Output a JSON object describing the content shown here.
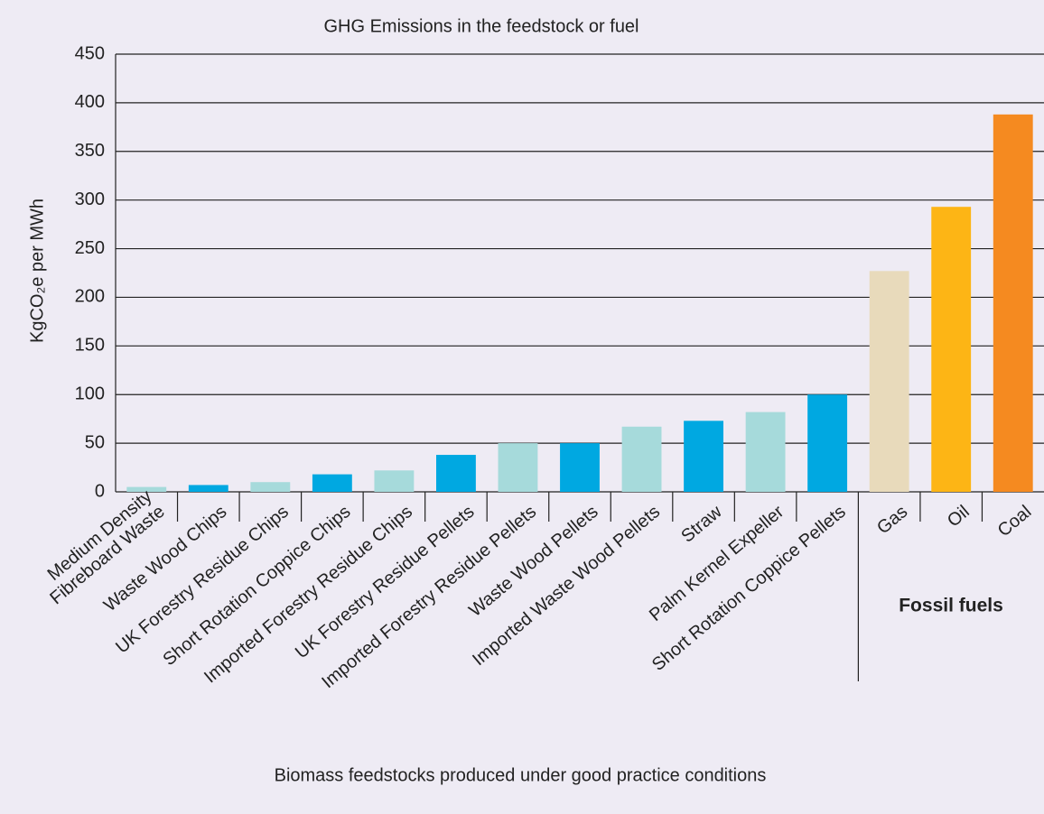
{
  "chart_data": {
    "type": "bar",
    "title": "GHG Emissions in the feedstock or fuel",
    "y_label": "KgCO₂e per MWh",
    "x_label": "Biomass feedstocks produced under good practice conditions",
    "group_label": "Fossil fuels",
    "categories": [
      "Medium Density\nFibreboard Waste",
      "Waste Wood Chips",
      "UK Forestry Residue Chips",
      "Short Rotation Coppice Chips",
      "Imported Forestry Residue Chips",
      "UK Forestry Residue Pellets",
      "Imported Forestry Residue Pellets",
      "Waste Wood Pellets",
      "Imported Waste Wood Pellets",
      "Straw",
      "Palm Kernel Expeller",
      "Short Rotation Coppice Pellets",
      "Gas",
      "Oil",
      "Coal"
    ],
    "values": [
      5,
      7,
      10,
      18,
      22,
      38,
      50,
      50,
      67,
      73,
      82,
      100,
      227,
      293,
      388
    ],
    "colors": [
      "#a6dadb",
      "#00a8e1",
      "#a6dadb",
      "#00a8e1",
      "#a6dadb",
      "#00a8e1",
      "#a6dadb",
      "#00a8e1",
      "#a6dadb",
      "#00a8e1",
      "#a6dadb",
      "#00a8e1",
      "#e8dabb",
      "#fdb515",
      "#f58a20"
    ],
    "ylim": [
      0,
      450
    ],
    "yticks": [
      0,
      50,
      100,
      150,
      200,
      250,
      300,
      350,
      400,
      450
    ],
    "grid": true
  }
}
